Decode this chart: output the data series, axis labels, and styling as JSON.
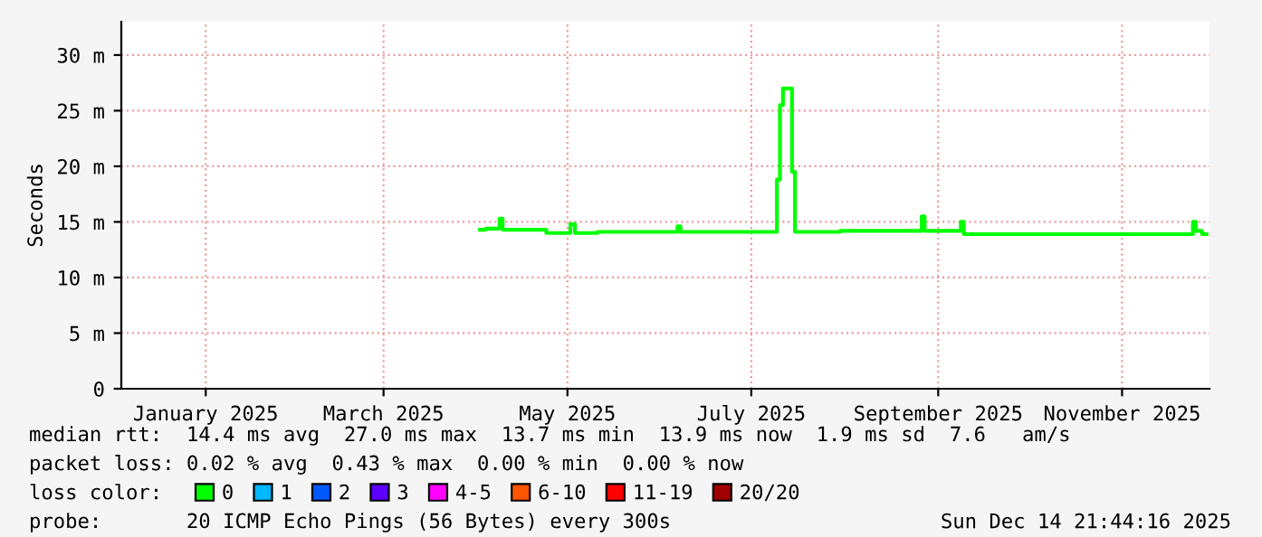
{
  "chart_data": {
    "type": "line",
    "ylabel": "Seconds",
    "legend_title": "loss color:",
    "legend": "bottom",
    "grid": true,
    "marker": "none",
    "line_style": "solid",
    "xlim": [
      "2024-12-18",
      "2025-12-14"
    ],
    "xticks": [
      {
        "value": "2025-01-15",
        "label": "January 2025"
      },
      {
        "value": "2025-03-15",
        "label": "March 2025"
      },
      {
        "value": "2025-05-15",
        "label": "May 2025"
      },
      {
        "value": "2025-07-15",
        "label": "July 2025"
      },
      {
        "value": "2025-09-15",
        "label": "September 2025"
      },
      {
        "value": "2025-11-15",
        "label": "November 2025"
      }
    ],
    "ylim": [
      0,
      33
    ],
    "yticks": [
      0,
      {
        "value": 5,
        "label": "5 m"
      },
      {
        "value": 10,
        "label": "10 m"
      },
      {
        "value": 15,
        "label": "15 m"
      },
      {
        "value": 20,
        "label": "20 m"
      },
      {
        "value": 25,
        "label": "25 m"
      },
      {
        "value": 30,
        "label": "30 m"
      }
    ],
    "x": [
      "2025-04-16",
      "2025-04-20",
      "2025-04-22",
      "2025-04-23",
      "2025-04-24",
      "2025-05-01",
      "2025-05-15",
      "2025-05-17",
      "2025-05-18",
      "2025-06-01",
      "2025-06-20",
      "2025-06-21",
      "2025-06-22",
      "2025-07-23",
      "2025-07-24",
      "2025-07-25",
      "2025-07-26",
      "2025-07-27",
      "2025-07-28",
      "2025-07-29",
      "2025-07-30",
      "2025-08-28",
      "2025-09-09",
      "2025-09-10",
      "2025-09-11",
      "2025-09-22",
      "2025-09-23",
      "2025-09-24",
      "2025-11-09",
      "2025-11-10",
      "2025-12-08",
      "2025-12-09",
      "2025-12-10",
      "2025-12-13"
    ],
    "series": [
      {
        "name": "0",
        "color": "#00ff00",
        "values": [
          14.3,
          14.4,
          14.4,
          15.3,
          14.3,
          14.3,
          14.0,
          14.8,
          14.0,
          14.1,
          14.1,
          14.6,
          14.1,
          14.1,
          18.8,
          25.5,
          27.0,
          27.0,
          27.0,
          19.5,
          14.1,
          14.2,
          14.2,
          15.5,
          14.2,
          14.2,
          15.0,
          13.9,
          13.9,
          13.9,
          13.9,
          15.0,
          14.2,
          13.9
        ]
      },
      {
        "name": "1",
        "color": "#00b8ff",
        "values": [
          null,
          null,
          null,
          null,
          null,
          null,
          null,
          null,
          null,
          null,
          null,
          null,
          null,
          null,
          null,
          null,
          null,
          null,
          null,
          null,
          null,
          null,
          null,
          null,
          null,
          null,
          null,
          null,
          null,
          null,
          null,
          null,
          null,
          null
        ]
      },
      {
        "name": "2",
        "color": "#0059ff",
        "values": [
          null,
          null,
          null,
          null,
          null,
          null,
          null,
          null,
          null,
          null,
          null,
          null,
          null,
          null,
          null,
          null,
          null,
          null,
          null,
          null,
          null,
          null,
          null,
          null,
          null,
          null,
          null,
          null,
          null,
          null,
          null,
          null,
          null,
          null
        ]
      },
      {
        "name": "3",
        "color": "#5e00ff",
        "values": [
          null,
          null,
          null,
          null,
          null,
          null,
          null,
          null,
          null,
          null,
          null,
          null,
          null,
          null,
          null,
          null,
          null,
          null,
          null,
          null,
          null,
          null,
          null,
          null,
          null,
          null,
          null,
          null,
          null,
          null,
          null,
          null,
          null,
          null
        ]
      },
      {
        "name": "4-5",
        "color": "#ff00ff",
        "values": [
          null,
          null,
          null,
          null,
          null,
          null,
          null,
          null,
          null,
          null,
          null,
          null,
          null,
          null,
          null,
          null,
          null,
          null,
          null,
          null,
          null,
          null,
          null,
          null,
          null,
          null,
          null,
          null,
          null,
          null,
          null,
          null,
          null,
          null
        ]
      },
      {
        "name": "6-10",
        "color": "#ff5500",
        "values": [
          null,
          null,
          null,
          null,
          null,
          null,
          null,
          null,
          null,
          null,
          null,
          null,
          null,
          null,
          null,
          null,
          null,
          null,
          null,
          null,
          null,
          null,
          null,
          null,
          null,
          null,
          null,
          null,
          null,
          null,
          null,
          null,
          null,
          null
        ]
      },
      {
        "name": "11-19",
        "color": "#ff0000",
        "values": [
          null,
          null,
          null,
          null,
          null,
          null,
          null,
          null,
          null,
          null,
          null,
          null,
          null,
          null,
          null,
          null,
          null,
          null,
          null,
          null,
          null,
          null,
          null,
          null,
          null,
          null,
          null,
          null,
          null,
          null,
          null,
          null,
          null,
          null
        ]
      },
      {
        "name": "20/20",
        "color": "#a10000",
        "values": [
          null,
          null,
          null,
          null,
          null,
          null,
          null,
          null,
          null,
          null,
          null,
          null,
          null,
          null,
          null,
          null,
          null,
          null,
          null,
          null,
          null,
          null,
          null,
          null,
          null,
          null,
          null,
          null,
          null,
          null,
          null,
          null,
          null,
          null
        ]
      }
    ],
    "annotations": [
      "median rtt:  14.4 ms avg  27.0 ms max  13.7 ms min  13.9 ms now  1.9 ms sd  7.6   am/s",
      "packet loss: 0.02 % avg  0.43 % max  0.00 % min  0.00 % now",
      "probe:       20 ICMP Echo Pings (56 Bytes) every 300s",
      "Sun Dec 14 21:44:16 2025"
    ]
  }
}
